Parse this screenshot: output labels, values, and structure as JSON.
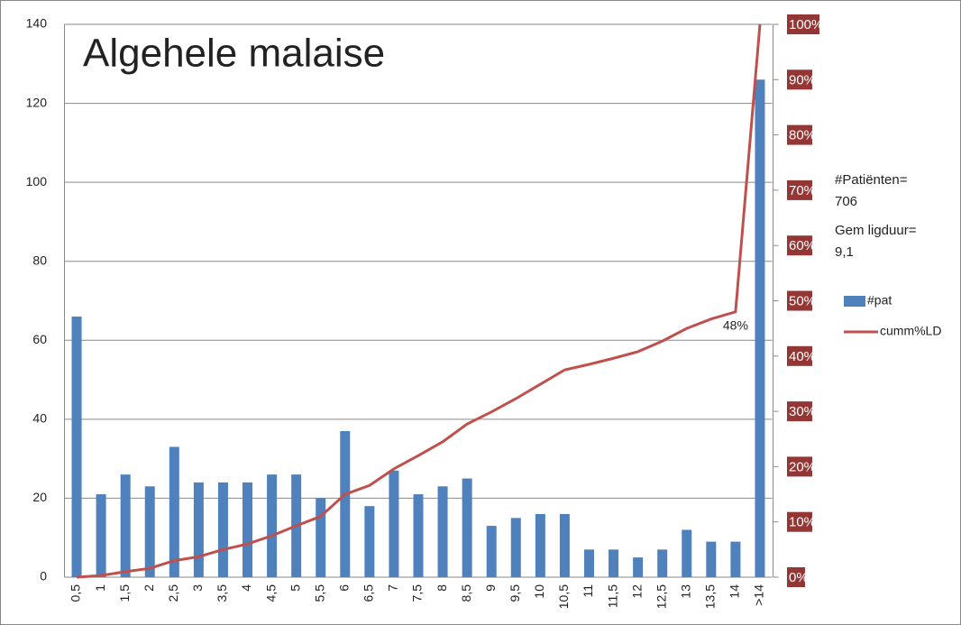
{
  "chart_data": {
    "type": "bar_line",
    "title": "Algehele malaise",
    "categories": [
      "0,5",
      "1",
      "1,5",
      "2",
      "2,5",
      "3",
      "3,5",
      "4",
      "4,5",
      "5",
      "5,5",
      "6",
      "6,5",
      "7",
      "7,5",
      "8",
      "8,5",
      "9",
      "9,5",
      "10",
      "10,5",
      "11",
      "11,5",
      "12",
      "12,5",
      "13",
      "13,5",
      "14",
      ">14"
    ],
    "series": [
      {
        "name": "#pat",
        "type": "bar",
        "color": "#4f81bd",
        "values": [
          66,
          21,
          26,
          23,
          33,
          24,
          24,
          24,
          26,
          26,
          20,
          37,
          18,
          27,
          21,
          23,
          25,
          13,
          15,
          16,
          16,
          7,
          7,
          5,
          7,
          12,
          9,
          9,
          126
        ]
      },
      {
        "name": "cumm%LD",
        "type": "line",
        "axis": "y2",
        "color": "#c0504d",
        "values": [
          0,
          0.3,
          1,
          1.6,
          3,
          3.7,
          5,
          6,
          7.5,
          9.3,
          11,
          15,
          16.6,
          19.6,
          22,
          24.5,
          27.7,
          29.9,
          32.3,
          34.9,
          37.5,
          38.5,
          39.6,
          40.8,
          42.7,
          45,
          46.7,
          48,
          100
        ],
        "value_labels": [
          null,
          null,
          null,
          null,
          null,
          null,
          null,
          null,
          null,
          null,
          null,
          null,
          null,
          null,
          null,
          null,
          null,
          null,
          null,
          null,
          null,
          null,
          null,
          null,
          null,
          null,
          null,
          "48%",
          null
        ]
      }
    ],
    "ylim": [
      0,
      140
    ],
    "yticks": [
      0,
      20,
      40,
      60,
      80,
      100,
      120,
      140
    ],
    "y2lim": [
      0,
      100
    ],
    "y2ticks": [
      {
        "value": 0,
        "label": "0%"
      },
      {
        "value": 10,
        "label": "10%"
      },
      {
        "value": 20,
        "label": "20%"
      },
      {
        "value": 30,
        "label": "30%"
      },
      {
        "value": 40,
        "label": "40%"
      },
      {
        "value": 50,
        "label": "50%"
      },
      {
        "value": 60,
        "label": "60%"
      },
      {
        "value": 70,
        "label": "70%"
      },
      {
        "value": 80,
        "label": "80%"
      },
      {
        "value": 90,
        "label": "90%"
      },
      {
        "value": 100,
        "label": "100%"
      }
    ],
    "grid": true,
    "annotations": [
      "#Patiënten=",
      "706",
      "Gem ligduur=",
      "9,1"
    ],
    "legend": "right"
  }
}
